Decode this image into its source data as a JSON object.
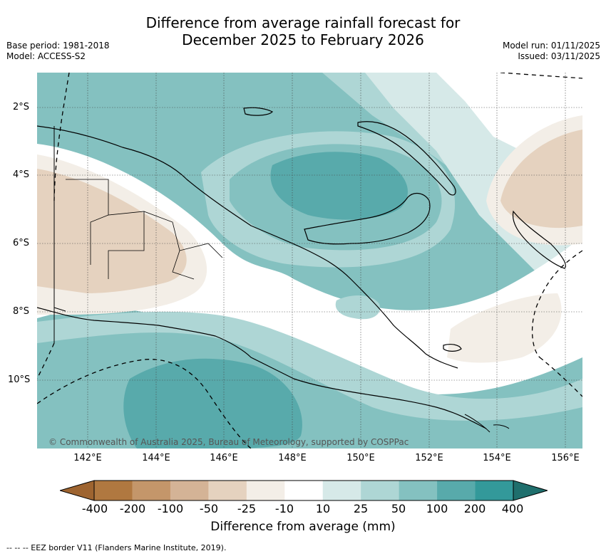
{
  "title_line1": "Difference from average rainfall forecast for",
  "title_line2": "December 2025 to February 2026",
  "base_period": "Base period: 1981-2018",
  "model": "Model: ACCESS-S2",
  "model_run": "Model run: 01/11/2025",
  "issued": "Issued: 03/11/2025",
  "lat_labels": [
    "2°S",
    "4°S",
    "6°S",
    "8°S",
    "10°S"
  ],
  "lon_labels": [
    "142°E",
    "144°E",
    "146°E",
    "148°E",
    "150°E",
    "152°E",
    "154°E",
    "156°E"
  ],
  "colorbar": {
    "labels": [
      "-400",
      "-200",
      "-100",
      "-50",
      "-25",
      "-10",
      "10",
      "25",
      "50",
      "100",
      "200",
      "400"
    ],
    "colors": [
      "#9e6430",
      "#b07840",
      "#c4966a",
      "#d4b396",
      "#e5d2bf",
      "#f3eee7",
      "#ffffff",
      "#d6e9e8",
      "#aed6d5",
      "#84c1c0",
      "#58aaab",
      "#33999a",
      "#1f6f6d"
    ],
    "title": "Difference from average (mm)"
  },
  "copyright": "© Commonwealth of Australia 2025, Bureau of Meteorology, supported by COSPPac",
  "legend_text": "--  --  -- EEZ border V11 (Flanders Marine Institute, 2019)."
}
